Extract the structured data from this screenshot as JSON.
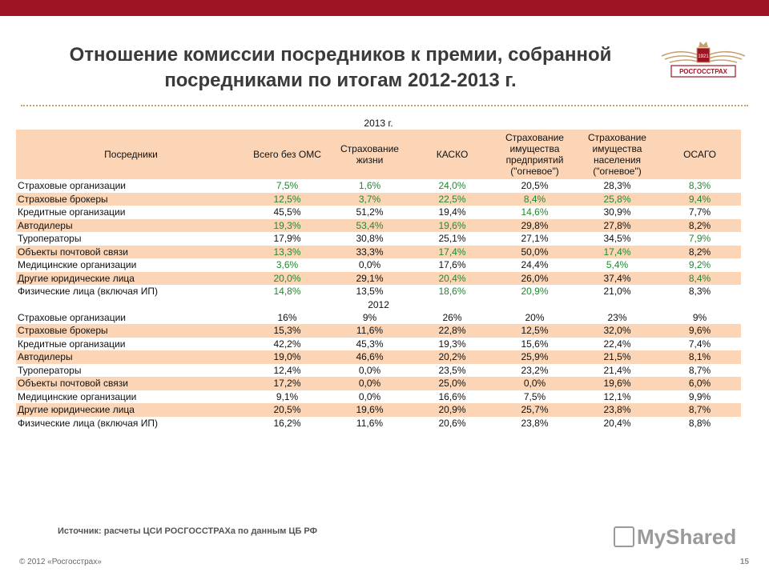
{
  "slide": {
    "title_line1": "Отношение комиссии посредников к премии, собранной",
    "title_line2": "посредниками по итогам 2012-2013 г.",
    "logo_text": "РОСГОССТРАХ",
    "logo_year": "1921",
    "source": "Источник: расчеты ЦСИ РОСГОССТРАХа по данным ЦБ РФ",
    "watermark": "MyShared",
    "copyright": "© 2012 «Росгосстрах»",
    "page_number": "15"
  },
  "colors": {
    "accent": "#9e1424",
    "row_highlight": "#fbd5b5",
    "green_value": "#1f8a2e"
  },
  "table": {
    "headers": [
      "Посредники",
      "Всего без ОМС",
      "Страхование жизни",
      "КАСКО",
      "Страхование имущества предприятий (\"огневое\")",
      "Страхование имущества населения (\"огневое\")",
      "ОСАГО"
    ],
    "section_2013": "2013 г.",
    "rows_2013": [
      [
        "Страховые организации",
        "7,5%",
        "1,6%",
        "24,0%",
        "20,5%",
        "28,3%",
        "8,3%"
      ],
      [
        "Страховые брокеры",
        "12,5%",
        "3,7%",
        "22,5%",
        "8,4%",
        "25,8%",
        "9,4%"
      ],
      [
        "Кредитные организации",
        "45,5%",
        "51,2%",
        "19,4%",
        "14,6%",
        "30,9%",
        "7,7%"
      ],
      [
        "Автодилеры",
        "19,3%",
        "53,4%",
        "19,6%",
        "29,8%",
        "27,8%",
        "8,2%"
      ],
      [
        "Туроператоры",
        "17,9%",
        "30,8%",
        "25,1%",
        "27,1%",
        "34,5%",
        "7,9%"
      ],
      [
        "Объекты почтовой связи",
        "13,3%",
        "33,3%",
        "17,4%",
        "50,0%",
        "17,4%",
        "8,2%"
      ],
      [
        "Медицинские организации",
        "3,6%",
        "0,0%",
        "17,6%",
        "24,4%",
        "5,4%",
        "9,2%"
      ],
      [
        "Другие юридические лица",
        "20,0%",
        "29,1%",
        "20,4%",
        "26,0%",
        "37,4%",
        "8,4%"
      ],
      [
        "Физические лица (включая ИП)",
        "14,8%",
        "13,5%",
        "18,6%",
        "20,9%",
        "21,0%",
        "8,3%"
      ]
    ],
    "green_2013": [
      [
        1,
        2,
        3,
        6
      ],
      [
        1,
        2,
        3,
        4,
        5,
        6
      ],
      [
        4
      ],
      [
        1,
        2,
        3
      ],
      [
        6
      ],
      [
        1,
        3,
        5
      ],
      [
        1,
        5,
        6
      ],
      [
        1,
        3,
        6
      ],
      [
        1,
        3,
        4
      ]
    ],
    "section_2012": "2012",
    "rows_2012": [
      [
        "Страховые организации",
        "16%",
        "9%",
        "26%",
        "20%",
        "23%",
        "9%"
      ],
      [
        "Страховые брокеры",
        "15,3%",
        "11,6%",
        "22,8%",
        "12,5%",
        "32,0%",
        "9,6%"
      ],
      [
        "Кредитные организации",
        "42,2%",
        "45,3%",
        "19,3%",
        "15,6%",
        "22,4%",
        "7,4%"
      ],
      [
        "Автодилеры",
        "19,0%",
        "46,6%",
        "20,2%",
        "25,9%",
        "21,5%",
        "8,1%"
      ],
      [
        "Туроператоры",
        "12,4%",
        "0,0%",
        "23,5%",
        "23,2%",
        "21,4%",
        "8,7%"
      ],
      [
        "Объекты почтовой связи",
        "17,2%",
        "0,0%",
        "25,0%",
        "0,0%",
        "19,6%",
        "6,0%"
      ],
      [
        "Медицинские организации",
        "9,1%",
        "0,0%",
        "16,6%",
        "7,5%",
        "12,1%",
        "9,9%"
      ],
      [
        "Другие юридические лица",
        "20,5%",
        "19,6%",
        "20,9%",
        "25,7%",
        "23,8%",
        "8,7%"
      ],
      [
        "Физические лица (включая ИП)",
        "16,2%",
        "11,6%",
        "20,6%",
        "23,8%",
        "20,4%",
        "8,8%"
      ]
    ]
  }
}
